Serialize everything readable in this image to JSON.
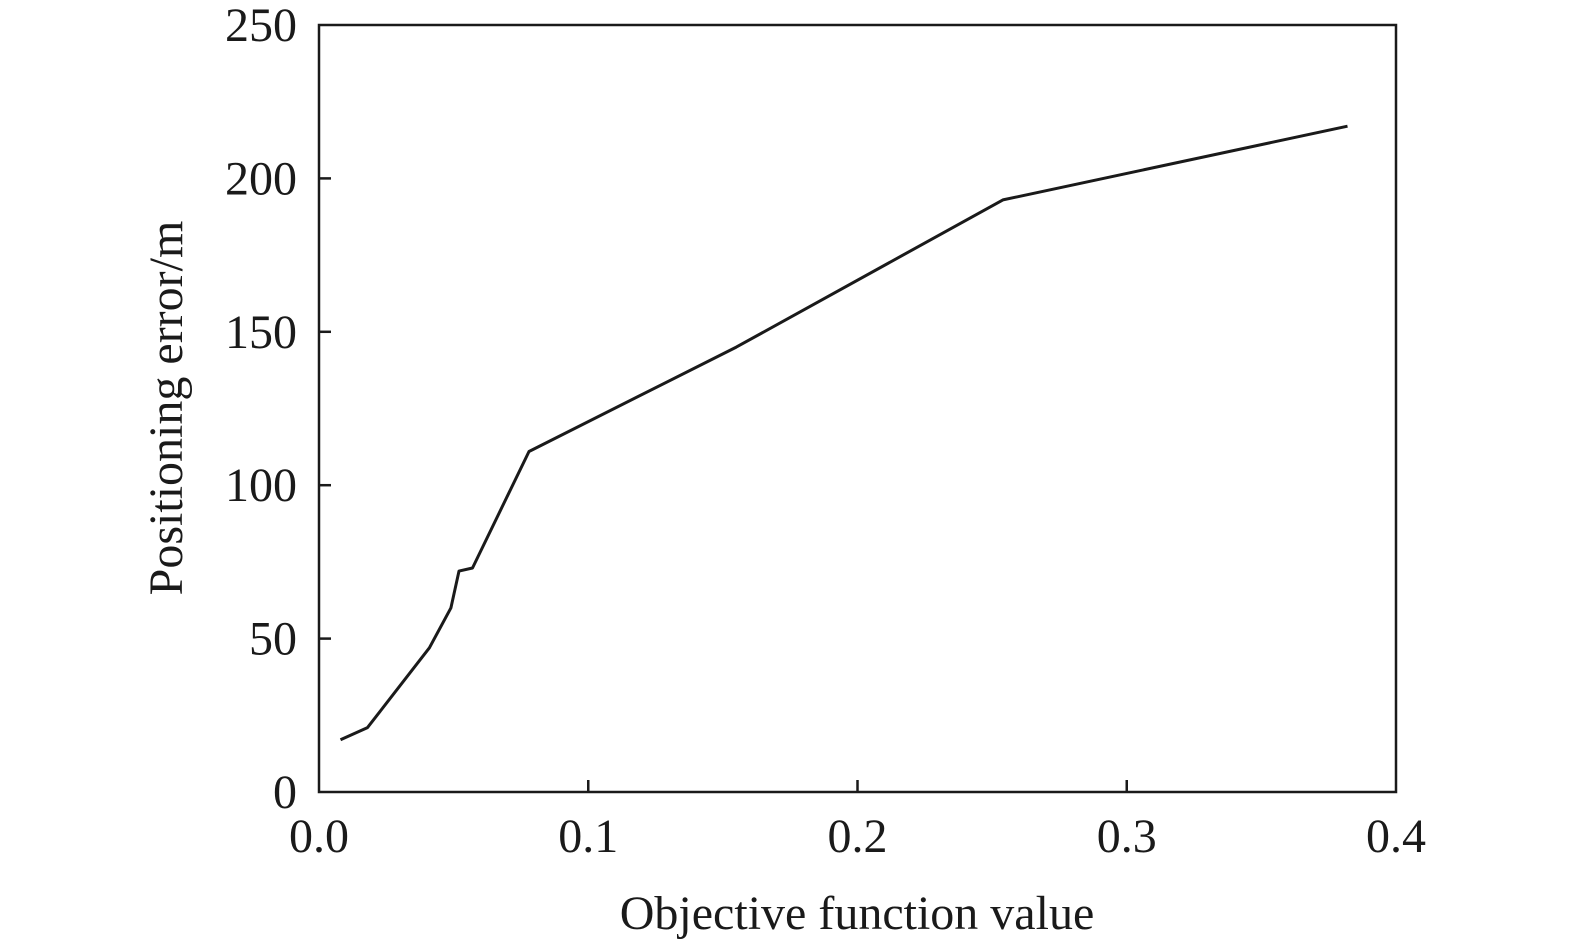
{
  "chart_data": {
    "type": "line",
    "title": "",
    "xlabel": "Objective function value",
    "ylabel": "Positioning error/m",
    "xlim": [
      0,
      0.4
    ],
    "ylim": [
      0,
      250
    ],
    "xticks": [
      0,
      0.1,
      0.2,
      0.3,
      0.4
    ],
    "xtick_labels": [
      "0.0",
      "0.1",
      "0.2",
      "0.3",
      "0.4"
    ],
    "yticks": [
      0,
      50,
      100,
      150,
      200,
      250
    ],
    "ytick_labels": [
      "0",
      "50",
      "100",
      "150",
      "200",
      "250"
    ],
    "grid": false,
    "series": [
      {
        "x": [
          0.008,
          0.018,
          0.041,
          0.049,
          0.052,
          0.057,
          0.078,
          0.155,
          0.254,
          0.382
        ],
        "y": [
          17,
          21,
          47,
          60,
          72,
          73,
          111,
          145,
          193,
          217
        ],
        "color": "#1a1a1a"
      }
    ]
  }
}
